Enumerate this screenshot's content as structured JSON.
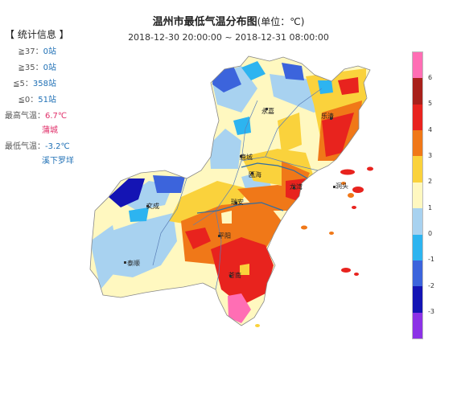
{
  "header": {
    "title": "温州市最低气温分布图",
    "unit_label": "(单位：℃)",
    "time_range": "2018-12-30 20:00:00 ~ 2018-12-31 08:00:00"
  },
  "stats_panel": {
    "heading": "【 统计信息 】",
    "rows": [
      {
        "key": "≧37：",
        "value": "0站"
      },
      {
        "key": "≧35：",
        "value": "0站"
      },
      {
        "key": "≦5：",
        "value": "358站"
      },
      {
        "key": "≦0：",
        "value": "51站"
      }
    ],
    "max_label": "最高气温：",
    "max_value": "6.7℃",
    "max_place": "蒲城",
    "min_label": "最低气温：",
    "min_value": "-3.2℃",
    "min_place": "溪下罗垟"
  },
  "legend": {
    "ticks": [
      "6",
      "5",
      "4",
      "3",
      "2",
      "1",
      "0",
      "-1",
      "-2",
      "-3"
    ],
    "colors": [
      "#ff6eb4",
      "#a8201a",
      "#e8231e",
      "#f07818",
      "#fad23c",
      "#fff8c0",
      "#a8d2f0",
      "#2db4f0",
      "#3c64dc",
      "#1414b4",
      "#8c32e6"
    ]
  },
  "map": {
    "cities": [
      "永嘉",
      "乐清",
      "鹿城",
      "瓯海",
      "龙湾",
      "洞头",
      "文成",
      "瑞安",
      "平阳",
      "泰顺",
      "苍南"
    ]
  }
}
